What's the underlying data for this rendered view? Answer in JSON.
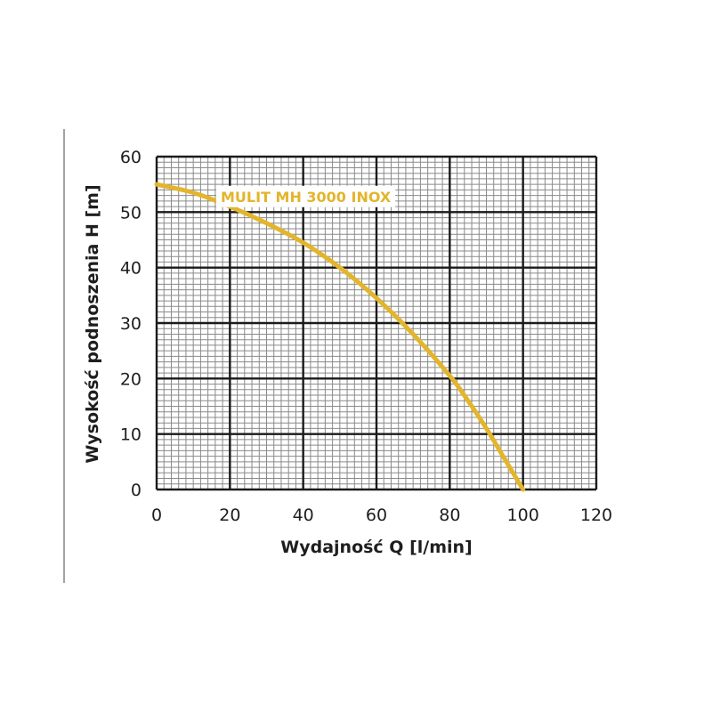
{
  "chart_data": {
    "type": "line",
    "title": "",
    "xlabel": "Wydajność Q [l/min]",
    "ylabel": "Wysokość podnoszenia H [m]",
    "xlim": [
      0,
      120
    ],
    "ylim": [
      0,
      60
    ],
    "x_ticks": [
      "0",
      "20",
      "40",
      "60",
      "80",
      "100",
      "120"
    ],
    "y_ticks": [
      "0",
      "10",
      "20",
      "30",
      "40",
      "50",
      "60"
    ],
    "grid": true,
    "series": [
      {
        "name": "MULIT MH 3000 INOX",
        "color": "#e3b52c",
        "x": [
          0,
          10,
          20,
          30,
          40,
          50,
          60,
          70,
          80,
          85,
          90,
          95,
          100
        ],
        "y": [
          55,
          53.5,
          51,
          48,
          44.5,
          40,
          34.5,
          28,
          20.5,
          16,
          11,
          5.5,
          0
        ]
      }
    ]
  }
}
